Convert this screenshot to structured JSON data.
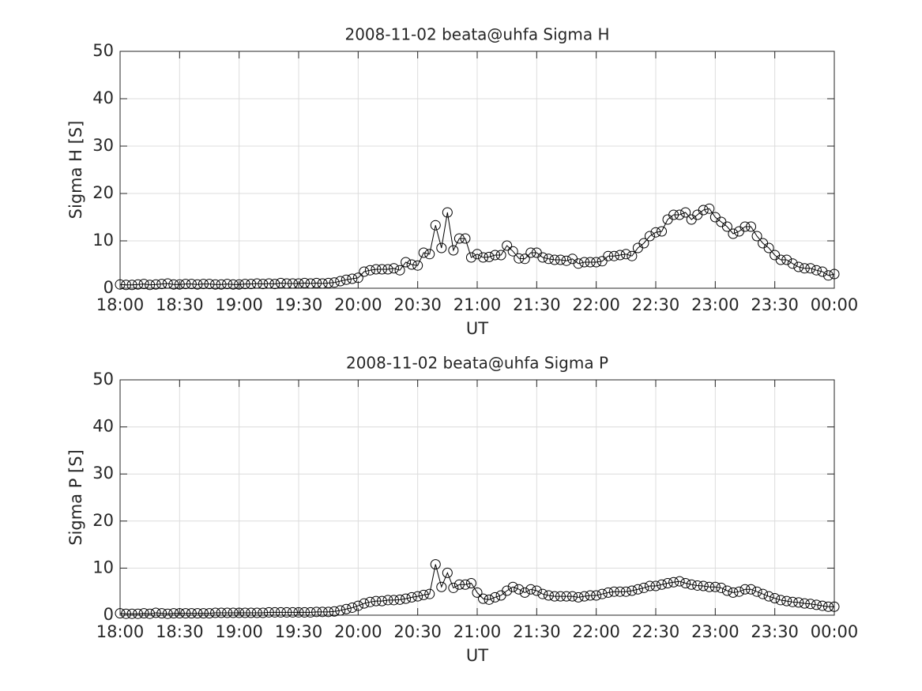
{
  "chart_data": [
    {
      "type": "line",
      "title": "2008-11-02  beata@uhfa Sigma H",
      "xlabel": "UT",
      "ylabel": "Sigma H [S]",
      "grid": true,
      "marker": "o",
      "x": [
        0,
        3,
        6,
        9,
        12,
        15,
        18,
        21,
        24,
        27,
        30,
        33,
        36,
        39,
        42,
        45,
        48,
        51,
        54,
        57,
        60,
        63,
        66,
        69,
        72,
        75,
        78,
        81,
        84,
        87,
        90,
        93,
        96,
        99,
        102,
        105,
        108,
        111,
        114,
        117,
        120,
        123,
        126,
        129,
        132,
        135,
        138,
        141,
        144,
        147,
        150,
        153,
        156,
        159,
        162,
        165,
        168,
        171,
        174,
        177,
        180,
        183,
        186,
        189,
        192,
        195,
        198,
        201,
        204,
        207,
        210,
        213,
        216,
        219,
        222,
        225,
        228,
        231,
        234,
        237,
        240,
        243,
        246,
        249,
        252,
        255,
        258,
        261,
        264,
        267,
        270,
        273,
        276,
        279,
        282,
        285,
        288,
        291,
        294,
        297,
        300,
        303,
        306,
        309,
        312,
        315,
        318,
        321,
        324,
        327,
        330,
        333,
        336,
        339,
        342,
        345,
        348,
        351,
        354,
        357,
        360
      ],
      "series": [
        {
          "color": "#000000",
          "values": [
            0.8,
            0.7,
            0.7,
            0.8,
            0.9,
            0.7,
            0.8,
            0.9,
            1.0,
            0.8,
            0.8,
            0.9,
            0.9,
            0.8,
            0.9,
            0.9,
            0.8,
            0.8,
            0.9,
            0.8,
            0.8,
            0.9,
            0.9,
            1.0,
            0.9,
            1.0,
            0.9,
            1.1,
            1.0,
            1.0,
            1.0,
            1.1,
            1.0,
            1.1,
            1.0,
            1.1,
            1.2,
            1.5,
            1.8,
            2.0,
            2.2,
            3.5,
            3.8,
            4.0,
            4.0,
            4.0,
            4.2,
            3.8,
            5.5,
            5.0,
            4.8,
            7.5,
            7.2,
            13.3,
            8.5,
            16.0,
            8.0,
            10.5,
            10.5,
            6.5,
            7.2,
            6.5,
            6.6,
            7.0,
            7.0,
            9.0,
            7.8,
            6.3,
            6.2,
            7.5,
            7.5,
            6.5,
            6.2,
            6.0,
            6.0,
            5.8,
            6.2,
            5.2,
            5.5,
            5.5,
            5.5,
            5.7,
            6.8,
            6.8,
            7.0,
            7.2,
            6.8,
            8.5,
            9.5,
            11,
            11.8,
            12,
            14.5,
            15.5,
            15.5,
            16,
            14.5,
            15.5,
            16.5,
            16.8,
            15,
            14,
            13,
            11.5,
            12,
            13,
            13,
            11,
            9.5,
            8.5,
            7,
            6,
            6,
            5.2,
            4.5,
            4.2,
            4.2,
            3.8,
            3.5,
            2.7,
            3.0
          ]
        }
      ],
      "xlim": [
        0,
        360
      ],
      "xticks": [
        {
          "value": 0,
          "label": "18:00"
        },
        {
          "value": 30,
          "label": "18:30"
        },
        {
          "value": 60,
          "label": "19:00"
        },
        {
          "value": 90,
          "label": "19:30"
        },
        {
          "value": 120,
          "label": "20:00"
        },
        {
          "value": 150,
          "label": "20:30"
        },
        {
          "value": 180,
          "label": "21:00"
        },
        {
          "value": 210,
          "label": "21:30"
        },
        {
          "value": 240,
          "label": "22:00"
        },
        {
          "value": 270,
          "label": "22:30"
        },
        {
          "value": 300,
          "label": "23:00"
        },
        {
          "value": 330,
          "label": "23:30"
        },
        {
          "value": 360,
          "label": "00:00"
        }
      ],
      "ylim": [
        0,
        50
      ],
      "yticks": [
        0,
        10,
        20,
        30,
        40,
        50
      ]
    },
    {
      "type": "line",
      "title": "2008-11-02  beata@uhfa Sigma P",
      "xlabel": "UT",
      "ylabel": "Sigma P [S]",
      "grid": true,
      "marker": "o",
      "x": [
        0,
        3,
        6,
        9,
        12,
        15,
        18,
        21,
        24,
        27,
        30,
        33,
        36,
        39,
        42,
        45,
        48,
        51,
        54,
        57,
        60,
        63,
        66,
        69,
        72,
        75,
        78,
        81,
        84,
        87,
        90,
        93,
        96,
        99,
        102,
        105,
        108,
        111,
        114,
        117,
        120,
        123,
        126,
        129,
        132,
        135,
        138,
        141,
        144,
        147,
        150,
        153,
        156,
        159,
        162,
        165,
        168,
        171,
        174,
        177,
        180,
        183,
        186,
        189,
        192,
        195,
        198,
        201,
        204,
        207,
        210,
        213,
        216,
        219,
        222,
        225,
        228,
        231,
        234,
        237,
        240,
        243,
        246,
        249,
        252,
        255,
        258,
        261,
        264,
        267,
        270,
        273,
        276,
        279,
        282,
        285,
        288,
        291,
        294,
        297,
        300,
        303,
        306,
        309,
        312,
        315,
        318,
        321,
        324,
        327,
        330,
        333,
        336,
        339,
        342,
        345,
        348,
        351,
        354,
        357,
        360
      ],
      "series": [
        {
          "color": "#000000",
          "values": [
            0.4,
            0.3,
            0.3,
            0.3,
            0.4,
            0.3,
            0.5,
            0.4,
            0.3,
            0.4,
            0.4,
            0.4,
            0.4,
            0.4,
            0.4,
            0.4,
            0.5,
            0.5,
            0.5,
            0.5,
            0.5,
            0.5,
            0.5,
            0.5,
            0.5,
            0.6,
            0.6,
            0.6,
            0.6,
            0.6,
            0.6,
            0.6,
            0.6,
            0.7,
            0.7,
            0.7,
            0.8,
            1.0,
            1.3,
            1.6,
            2.0,
            2.5,
            2.8,
            3.0,
            3.0,
            3.2,
            3.2,
            3.3,
            3.5,
            3.8,
            4.0,
            4.3,
            4.5,
            10.8,
            6.0,
            9.0,
            5.8,
            6.5,
            6.5,
            6.8,
            4.8,
            3.5,
            3.3,
            3.8,
            4.2,
            5.2,
            6.0,
            5.5,
            4.8,
            5.5,
            5.2,
            4.5,
            4.2,
            4.0,
            4.0,
            4.0,
            4.0,
            3.8,
            4.0,
            4.2,
            4.2,
            4.5,
            4.8,
            5.0,
            5.0,
            5.0,
            5.2,
            5.5,
            5.8,
            6.2,
            6.2,
            6.5,
            6.8,
            7.0,
            7.2,
            6.8,
            6.5,
            6.3,
            6.2,
            6.0,
            6.0,
            5.8,
            5.2,
            4.8,
            5.0,
            5.5,
            5.5,
            5.0,
            4.5,
            4.0,
            3.6,
            3.2,
            3.0,
            2.8,
            2.7,
            2.5,
            2.4,
            2.2,
            2.0,
            1.8,
            1.8
          ]
        }
      ],
      "xlim": [
        0,
        360
      ],
      "xticks": [
        {
          "value": 0,
          "label": "18:00"
        },
        {
          "value": 30,
          "label": "18:30"
        },
        {
          "value": 60,
          "label": "19:00"
        },
        {
          "value": 90,
          "label": "19:30"
        },
        {
          "value": 120,
          "label": "20:00"
        },
        {
          "value": 150,
          "label": "20:30"
        },
        {
          "value": 180,
          "label": "21:00"
        },
        {
          "value": 210,
          "label": "21:30"
        },
        {
          "value": 240,
          "label": "22:00"
        },
        {
          "value": 270,
          "label": "22:30"
        },
        {
          "value": 300,
          "label": "23:00"
        },
        {
          "value": 330,
          "label": "23:30"
        },
        {
          "value": 360,
          "label": "00:00"
        }
      ],
      "ylim": [
        0,
        50
      ],
      "yticks": [
        0,
        10,
        20,
        30,
        40,
        50
      ]
    }
  ]
}
